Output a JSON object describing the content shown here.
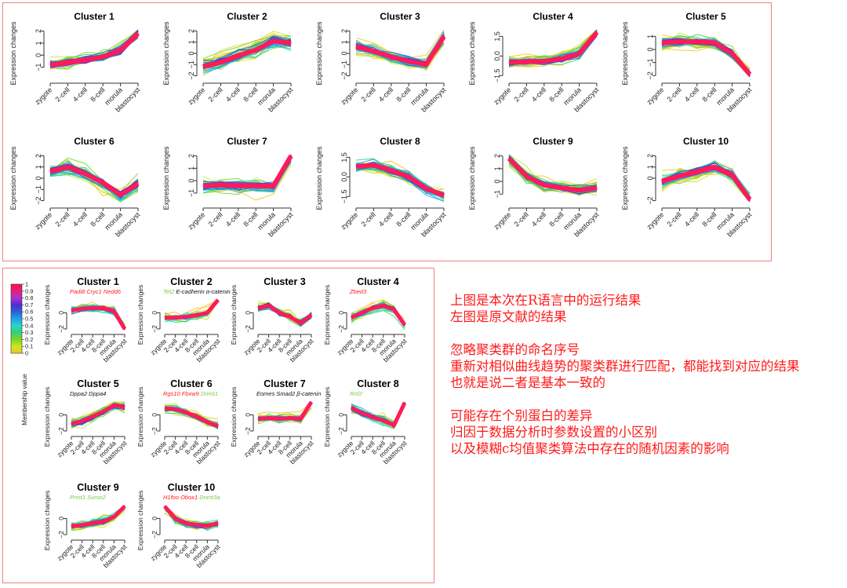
{
  "note": {
    "paragraphs": [
      [
        "上图是本次在R语言中的运行结果",
        "左图是原文献的结果"
      ],
      [
        "忽略聚类群的命名序号",
        "重新对相似曲线趋势的聚类群进行匹配，都能找到对应的结果",
        "也就是说二者是基本一致的"
      ],
      [
        "可能存在个别蛋白的差异",
        "归因于数据分析时参数设置的小区别",
        "以及模糊c均值聚类算法中存在的随机因素的影响"
      ]
    ]
  },
  "colors": {
    "border": "#f08080",
    "note_text": "#ff1a1a",
    "membership_scale": [
      "#f5c518",
      "#c8e62a",
      "#7ed321",
      "#33d17a",
      "#2ad4c8",
      "#1aa3e8",
      "#2f5fd6",
      "#4b2fd0",
      "#b02fd0",
      "#e0207a",
      "#ff1040"
    ]
  },
  "colorbar": {
    "title": "Membership value",
    "ticks": [
      "0",
      "0.1",
      "0.2",
      "0.3",
      "0.4",
      "0.5",
      "0.6",
      "0.7",
      "0.8",
      "0.9",
      "1"
    ]
  },
  "chart_data": [
    {
      "id": "r-results",
      "type": "line",
      "description": "Fuzzy c-means clustering result (R run), 10 clusters of expression profiles",
      "x": [
        "zygote",
        "2-cell",
        "4-cell",
        "8-cell",
        "morula",
        "blastocyst"
      ],
      "ylabel": "Expression changes",
      "grid": false,
      "clusters": [
        {
          "title": "Cluster 1",
          "yticks": [
            "-1",
            "0",
            "1",
            "2"
          ],
          "ylim": [
            -1.8,
            2.1
          ],
          "center": [
            -0.8,
            -0.6,
            -0.4,
            -0.15,
            0.4,
            1.8
          ],
          "spread": 0.45
        },
        {
          "title": "Cluster 2",
          "yticks": [
            "-2",
            "-1",
            "0",
            "1",
            "2"
          ],
          "ylim": [
            -2.1,
            2.1
          ],
          "center": [
            -1.2,
            -0.8,
            -0.2,
            0.3,
            1.1,
            0.9
          ],
          "spread": 0.7
        },
        {
          "title": "Cluster 3",
          "yticks": [
            "-2",
            "-1",
            "0",
            "1",
            "2"
          ],
          "ylim": [
            -2.1,
            2.1
          ],
          "center": [
            0.6,
            0.2,
            -0.3,
            -0.7,
            -1.0,
            1.5
          ],
          "spread": 0.6
        },
        {
          "title": "Cluster 4",
          "yticks": [
            "-1.5",
            "0.0",
            "1.5"
          ],
          "ylim": [
            -1.6,
            2.0
          ],
          "center": [
            -0.5,
            -0.45,
            -0.4,
            -0.2,
            0.2,
            1.8
          ],
          "spread": 0.4
        },
        {
          "title": "Cluster 5",
          "yticks": [
            "-2",
            "-1",
            "0",
            "1"
          ],
          "ylim": [
            -2.1,
            1.5
          ],
          "center": [
            0.5,
            0.6,
            0.6,
            0.5,
            -0.3,
            -1.9
          ],
          "spread": 0.45
        },
        {
          "title": "Cluster 6",
          "yticks": [
            "-2",
            "-1",
            "0",
            "1",
            "2"
          ],
          "ylim": [
            -2.1,
            2.1
          ],
          "center": [
            0.6,
            1.0,
            0.4,
            -0.4,
            -1.5,
            -0.5
          ],
          "spread": 0.65
        },
        {
          "title": "Cluster 7",
          "yticks": [
            "-1",
            "0",
            "1",
            "2"
          ],
          "ylim": [
            -1.7,
            2.1
          ],
          "center": [
            -0.4,
            -0.35,
            -0.4,
            -0.4,
            -0.45,
            2.0
          ],
          "spread": 0.55
        },
        {
          "title": "Cluster 8",
          "yticks": [
            "-1.5",
            "0.0",
            "1.5"
          ],
          "ylim": [
            -1.9,
            1.7
          ],
          "center": [
            0.8,
            0.9,
            0.5,
            0.0,
            -0.9,
            -1.4
          ],
          "spread": 0.45
        },
        {
          "title": "Cluster 9",
          "yticks": [
            "-1",
            "0",
            "1",
            "2"
          ],
          "ylim": [
            -1.6,
            2.1
          ],
          "center": [
            1.8,
            0.4,
            -0.3,
            -0.5,
            -0.7,
            -0.5
          ],
          "spread": 0.45
        },
        {
          "title": "Cluster 10",
          "yticks": [
            "-2",
            "0",
            "1",
            "2"
          ],
          "ylim": [
            -2.1,
            2.1
          ],
          "center": [
            -0.3,
            0.2,
            0.6,
            1.0,
            0.3,
            -1.9
          ],
          "spread": 0.65
        }
      ]
    },
    {
      "id": "original-paper",
      "type": "line",
      "description": "Original literature result, 10 clusters with gene labels",
      "x": [
        "zygote",
        "2-cell",
        "4-cell",
        "8-cell",
        "morula",
        "blastocyst"
      ],
      "ylabel": "Expression changes",
      "grid": false,
      "clusters": [
        {
          "title": "Cluster 1",
          "genes": [
            {
              "text": "Padi8 Cryc1 Nedd6",
              "color": "#ff1a1a"
            }
          ],
          "yticks": [
            "-2",
            "0"
          ],
          "ylim": [
            -2.1,
            1.6
          ],
          "center": [
            0.3,
            0.5,
            0.6,
            0.6,
            0.2,
            -2.0
          ],
          "spread": 0.45
        },
        {
          "title": "Cluster 2",
          "genes": [
            {
              "text": "Tet2 ",
              "color": "#7ac943"
            },
            {
              "text": "E-cadherin α-catenin",
              "color": "#111111"
            }
          ],
          "yticks": [
            "-2",
            "0"
          ],
          "ylim": [
            -2.1,
            1.6
          ],
          "center": [
            -0.6,
            -0.6,
            -0.5,
            -0.3,
            0.0,
            1.6
          ],
          "spread": 0.45
        },
        {
          "title": "Cluster 3",
          "genes": [],
          "yticks": [
            "-2",
            "0"
          ],
          "ylim": [
            -2.1,
            1.6
          ],
          "center": [
            0.6,
            0.9,
            0.0,
            -0.5,
            -1.3,
            -0.3
          ],
          "spread": 0.5
        },
        {
          "title": "Cluster 4",
          "genes": [
            {
              "text": "Zbed3",
              "color": "#ff1a1a"
            }
          ],
          "yticks": [
            "-2",
            "0"
          ],
          "ylim": [
            -2.1,
            1.6
          ],
          "center": [
            -0.6,
            0.0,
            0.6,
            0.9,
            0.4,
            -1.5
          ],
          "spread": 0.6
        },
        {
          "title": "Cluster 5",
          "genes": [
            {
              "text": "Dppa2 Dppa4",
              "color": "#111111"
            }
          ],
          "yticks": [
            "-2",
            "0"
          ],
          "ylim": [
            -2.1,
            1.6
          ],
          "center": [
            -1.1,
            -0.8,
            -0.2,
            0.4,
            1.2,
            1.0
          ],
          "spread": 0.55
        },
        {
          "title": "Cluster 6",
          "genes": [
            {
              "text": "Rgs10 Fbxw9 ",
              "color": "#ff1a1a"
            },
            {
              "text": "Dnmt1",
              "color": "#7ac943"
            }
          ],
          "yticks": [
            "-2",
            "0"
          ],
          "ylim": [
            -2.1,
            1.6
          ],
          "center": [
            0.8,
            0.7,
            0.3,
            -0.2,
            -0.9,
            -1.4
          ],
          "spread": 0.45
        },
        {
          "title": "Cluster 7",
          "genes": [
            {
              "text": "Eomes Smad2 β-catenin",
              "color": "#111111"
            }
          ],
          "yticks": [
            "-2",
            "0"
          ],
          "ylim": [
            -2.1,
            1.6
          ],
          "center": [
            -0.5,
            -0.4,
            -0.5,
            -0.4,
            -0.5,
            1.6
          ],
          "spread": 0.5
        },
        {
          "title": "Cluster 8",
          "genes": [
            {
              "text": "Rnf2",
              "color": "#7ac943"
            }
          ],
          "yticks": [
            "-2",
            "0"
          ],
          "ylim": [
            -2.1,
            1.6
          ],
          "center": [
            0.9,
            0.2,
            -0.3,
            -0.7,
            -1.3,
            1.5
          ],
          "spread": 0.55
        },
        {
          "title": "Cluster 9",
          "genes": [
            {
              "text": "Prmt1 Sumo2",
              "color": "#7ac943"
            }
          ],
          "yticks": [
            "-2",
            "0"
          ],
          "ylim": [
            -2.1,
            1.6
          ],
          "center": [
            -1.0,
            -0.8,
            -0.6,
            -0.4,
            0.2,
            1.5
          ],
          "spread": 0.45
        },
        {
          "title": "Cluster 10",
          "genes": [
            {
              "text": "H1foo Obox1 ",
              "color": "#ff1a1a"
            },
            {
              "text": "Dnmt3a",
              "color": "#7ac943"
            }
          ],
          "yticks": [
            "-2",
            "0"
          ],
          "ylim": [
            -2.1,
            1.6
          ],
          "center": [
            1.5,
            0.0,
            -0.6,
            -0.8,
            -0.9,
            -0.6
          ],
          "spread": 0.5
        }
      ]
    }
  ]
}
